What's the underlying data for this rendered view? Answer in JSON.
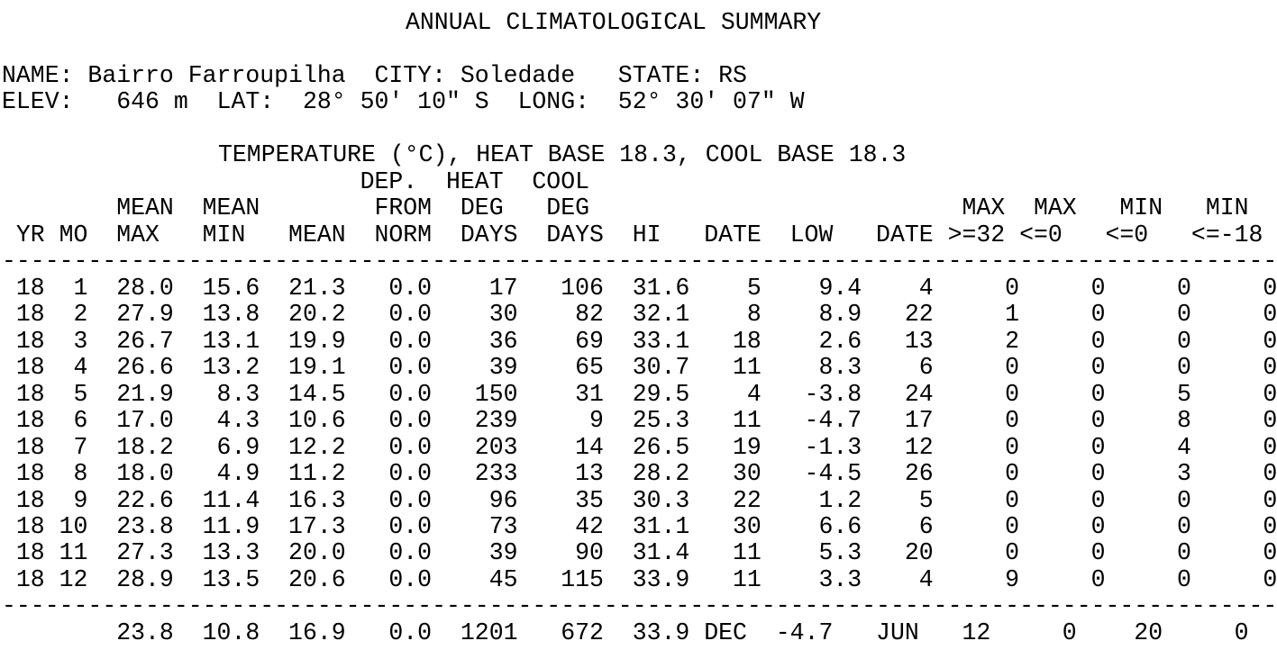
{
  "title": "ANNUAL CLIMATOLOGICAL SUMMARY",
  "station": {
    "name_line": "NAME: Bairro Farroupilha  CITY: Soledade   STATE: RS",
    "elev_line": "ELEV:   646 m  LAT:  28° 50' 10\" S  LONG:  52° 30' 07\" W"
  },
  "table": {
    "caption": "TEMPERATURE (°C), HEAT BASE 18.3, COOL BASE 18.3",
    "header_lines": [
      "                         DEP.  HEAT  COOL",
      "        MEAN  MEAN        FROM  DEG   DEG                          MAX  MAX   MIN   MIN",
      " YR MO  MAX   MIN   MEAN  NORM  DAYS  DAYS  HI   DATE  LOW   DATE >=32 <=0   <=0   <=-18"
    ],
    "separator": "-----------------------------------------------------------------------------------------",
    "columns": [
      "YR",
      "MO",
      "MEAN MAX",
      "MEAN MIN",
      "MEAN",
      "DEP. FROM NORM",
      "HEAT DEG DAYS",
      "COOL DEG DAYS",
      "HI",
      "DATE",
      "LOW",
      "DATE",
      "MAX >=32",
      "MAX <=0",
      "MIN <=0",
      "MIN <=-18"
    ],
    "rows": [
      " 18  1  28.0  15.6  21.3   0.0    17   106  31.6    5    9.4    4     0     0     0     0",
      " 18  2  27.9  13.8  20.2   0.0    30    82  32.1    8    8.9   22     1     0     0     0",
      " 18  3  26.7  13.1  19.9   0.0    36    69  33.1   18    2.6   13     2     0     0     0",
      " 18  4  26.6  13.2  19.1   0.0    39    65  30.7   11    8.3    6     0     0     0     0",
      " 18  5  21.9   8.3  14.5   0.0   150    31  29.5    4   -3.8   24     0     0     5     0",
      " 18  6  17.0   4.3  10.6   0.0   239     9  25.3   11   -4.7   17     0     0     8     0",
      " 18  7  18.2   6.9  12.2   0.0   203    14  26.5   19   -1.3   12     0     0     4     0",
      " 18  8  18.0   4.9  11.2   0.0   233    13  28.2   30   -4.5   26     0     0     3     0",
      " 18  9  22.6  11.4  16.3   0.0    96    35  30.3   22    1.2    5     0     0     0     0",
      " 18 10  23.8  11.9  17.3   0.0    73    42  31.1   30    6.6    6     0     0     0     0",
      " 18 11  27.3  13.3  20.0   0.0    39    90  31.4   11    5.3   20     0     0     0     0",
      " 18 12  28.9  13.5  20.6   0.0    45   115  33.9   11    3.3    4     9     0     0     0"
    ],
    "summary": "        23.8  10.8  16.9   0.0  1201   672  33.9 DEC  -4.7   JUN   12     0    20     0"
  }
}
